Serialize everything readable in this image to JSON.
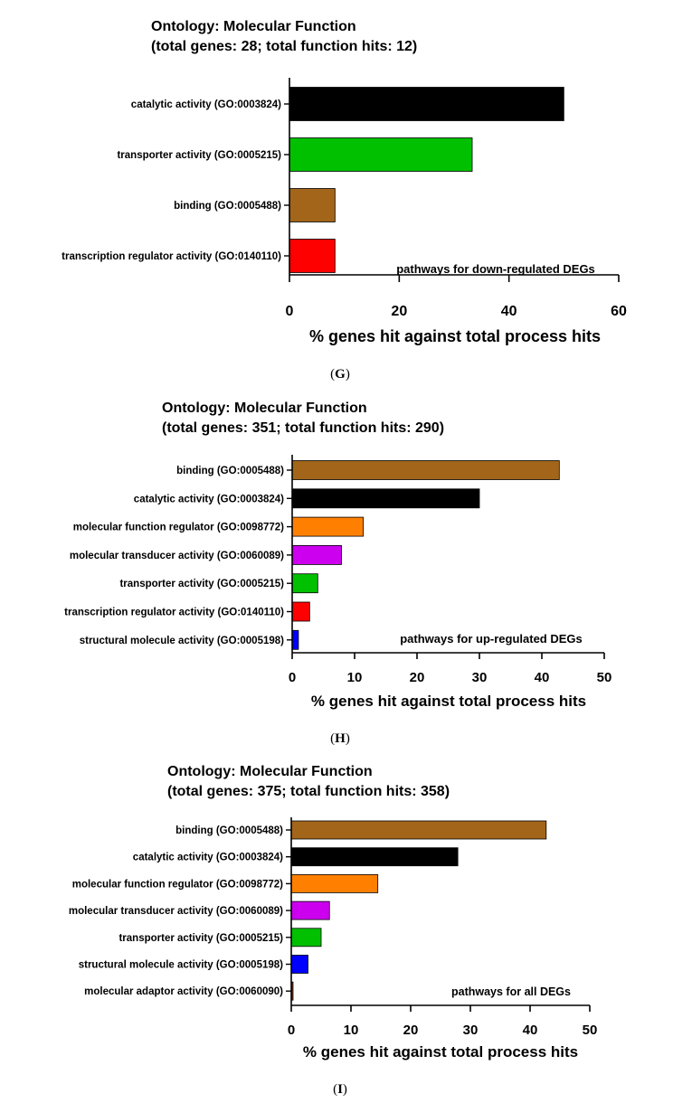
{
  "chart_data": [
    {
      "type": "bar",
      "orientation": "horizontal",
      "title": "Ontology: Molecular Function",
      "subtitle": "(total genes: 28; total function hits: 12)",
      "categories": [
        "catalytic activity (GO:0003824)",
        "transporter activity (GO:0005215)",
        "binding (GO:0005488)",
        "transcription regulator activity (GO:0140110)"
      ],
      "values": [
        50.0,
        33.3,
        8.3,
        8.3
      ],
      "colors": [
        "#000000",
        "#00c000",
        "#a2651a",
        "#ff0000"
      ],
      "xlabel": "% genes hit against total process hits",
      "xlim": [
        0,
        60
      ],
      "xticks": [
        0,
        20,
        40,
        60
      ],
      "annotation": "pathways for down-regulated DEGs",
      "panel_label": "(G)",
      "grid": false
    },
    {
      "type": "bar",
      "orientation": "horizontal",
      "title": "Ontology: Molecular Function",
      "subtitle": "(total genes: 351; total function hits: 290)",
      "categories": [
        "binding (GO:0005488)",
        "catalytic activity (GO:0003824)",
        "molecular function regulator (GO:0098772)",
        "molecular transducer activity (GO:0060089)",
        "transporter activity (GO:0005215)",
        "transcription regulator activity (GO:0140110)",
        "structural molecule activity (GO:0005198)"
      ],
      "values": [
        42.8,
        30.0,
        11.4,
        7.9,
        4.1,
        2.8,
        1.0
      ],
      "colors": [
        "#a2651a",
        "#000000",
        "#ff8000",
        "#cc00ee",
        "#00c000",
        "#ff0000",
        "#0000ff"
      ],
      "xlabel": "% genes hit against total process hits",
      "xlim": [
        0,
        50
      ],
      "xticks": [
        0,
        10,
        20,
        30,
        40,
        50
      ],
      "annotation": "pathways for up-regulated DEGs",
      "panel_label": "(H)",
      "grid": false
    },
    {
      "type": "bar",
      "orientation": "horizontal",
      "title": "Ontology: Molecular Function",
      "subtitle": "(total genes: 375; total function hits: 358)",
      "categories": [
        "binding (GO:0005488)",
        "catalytic activity (GO:0003824)",
        "molecular function regulator (GO:0098772)",
        "molecular transducer activity (GO:0060089)",
        "transporter activity (GO:0005215)",
        "structural molecule activity (GO:0005198)",
        "molecular adaptor activity (GO:0060090)"
      ],
      "values": [
        42.7,
        27.9,
        14.5,
        6.4,
        5.0,
        2.8,
        0.3
      ],
      "colors": [
        "#a2651a",
        "#000000",
        "#ff8000",
        "#cc00ee",
        "#00c000",
        "#0000ff",
        "#7a3b1f"
      ],
      "xlabel": "% genes hit against total process hits",
      "xlim": [
        0,
        50
      ],
      "xticks": [
        0,
        10,
        20,
        30,
        40,
        50
      ],
      "annotation": "pathways for all DEGs",
      "panel_label": "(I)",
      "grid": false
    }
  ]
}
